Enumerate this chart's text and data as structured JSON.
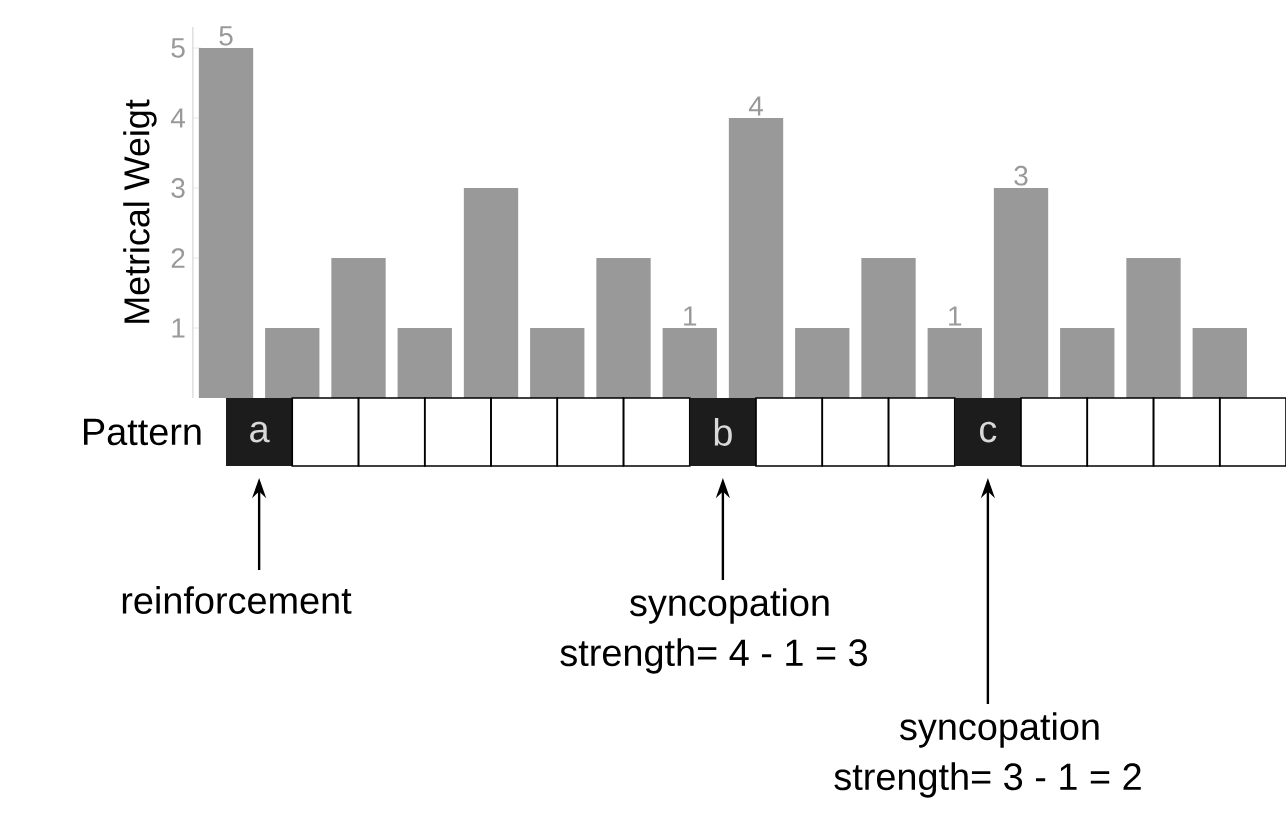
{
  "chart_data": {
    "type": "bar",
    "ylabel": "Metrical Weigt",
    "categories": [
      null,
      null,
      null,
      null,
      null,
      null,
      null,
      null,
      null,
      null,
      null,
      null,
      null,
      null,
      null,
      null
    ],
    "values": [
      5,
      1,
      2,
      1,
      3,
      1,
      2,
      1,
      4,
      1,
      2,
      1,
      3,
      1,
      2,
      1
    ],
    "value_labels": [
      "5",
      null,
      null,
      null,
      null,
      null,
      null,
      "1",
      "4",
      null,
      null,
      "1",
      "3",
      null,
      null,
      null
    ],
    "color": "#999999",
    "ylim": [
      0,
      5.3
    ],
    "yticks": [
      1,
      2,
      3,
      4,
      5
    ],
    "tick_labels": "y",
    "annotations": [
      "Pattern",
      "a",
      "b",
      "c",
      "reinforcement",
      "syncopation",
      "strength= 4 - 1 = 3",
      "syncopation",
      "strength= 3 - 1 = 2"
    ]
  }
}
